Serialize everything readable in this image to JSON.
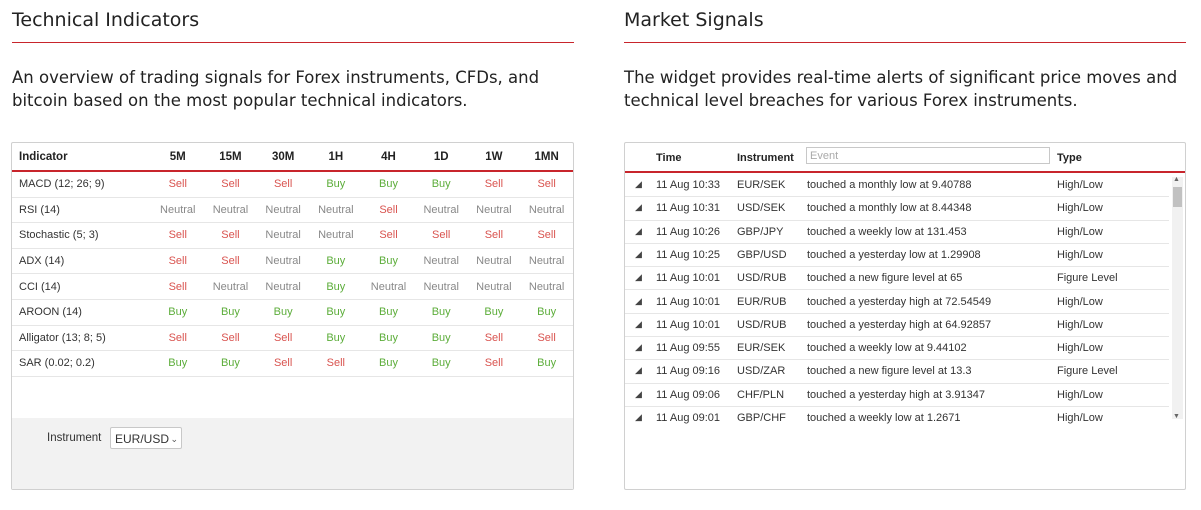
{
  "technical": {
    "title": "Technical Indicators",
    "description": "An overview of trading signals for Forex instruments, CFDs, and bitcoin based on the most popular technical indicators.",
    "columns": [
      "Indicator",
      "5M",
      "15M",
      "30M",
      "1H",
      "4H",
      "1D",
      "1W",
      "1MN"
    ],
    "rows": [
      {
        "name": "MACD (12; 26; 9)",
        "signals": [
          "Sell",
          "Sell",
          "Sell",
          "Buy",
          "Buy",
          "Buy",
          "Sell",
          "Sell"
        ]
      },
      {
        "name": "RSI (14)",
        "signals": [
          "Neutral",
          "Neutral",
          "Neutral",
          "Neutral",
          "Sell",
          "Neutral",
          "Neutral",
          "Neutral"
        ]
      },
      {
        "name": "Stochastic (5; 3)",
        "signals": [
          "Sell",
          "Sell",
          "Neutral",
          "Neutral",
          "Sell",
          "Sell",
          "Sell",
          "Sell"
        ]
      },
      {
        "name": "ADX (14)",
        "signals": [
          "Sell",
          "Sell",
          "Neutral",
          "Buy",
          "Buy",
          "Neutral",
          "Neutral",
          "Neutral"
        ]
      },
      {
        "name": "CCI (14)",
        "signals": [
          "Sell",
          "Neutral",
          "Neutral",
          "Buy",
          "Neutral",
          "Neutral",
          "Neutral",
          "Neutral"
        ]
      },
      {
        "name": "AROON (14)",
        "signals": [
          "Buy",
          "Buy",
          "Buy",
          "Buy",
          "Buy",
          "Buy",
          "Buy",
          "Buy"
        ]
      },
      {
        "name": "Alligator (13; 8; 5)",
        "signals": [
          "Sell",
          "Sell",
          "Sell",
          "Buy",
          "Buy",
          "Buy",
          "Sell",
          "Sell"
        ]
      },
      {
        "name": "SAR (0.02; 0.2)",
        "signals": [
          "Buy",
          "Buy",
          "Sell",
          "Sell",
          "Buy",
          "Buy",
          "Sell",
          "Buy"
        ]
      }
    ],
    "instrument_label": "Instrument",
    "instrument_value": "EUR/USD"
  },
  "market": {
    "title": "Market Signals",
    "description": "The widget provides real-time alerts of significant price moves and technical level breaches for various Forex instruments.",
    "headers": {
      "time": "Time",
      "instrument": "Instrument",
      "event_placeholder": "Event",
      "type": "Type"
    },
    "rows": [
      {
        "time": "11 Aug 10:33",
        "instrument": "EUR/SEK",
        "event": "touched a monthly low at 9.40788",
        "type": "High/Low"
      },
      {
        "time": "11 Aug 10:31",
        "instrument": "USD/SEK",
        "event": "touched a monthly low at 8.44348",
        "type": "High/Low"
      },
      {
        "time": "11 Aug 10:26",
        "instrument": "GBP/JPY",
        "event": "touched a weekly low at 131.453",
        "type": "High/Low"
      },
      {
        "time": "11 Aug 10:25",
        "instrument": "GBP/USD",
        "event": "touched a yesterday low at 1.29908",
        "type": "High/Low"
      },
      {
        "time": "11 Aug 10:01",
        "instrument": "USD/RUB",
        "event": "touched a new figure level at 65",
        "type": "Figure Level"
      },
      {
        "time": "11 Aug 10:01",
        "instrument": "EUR/RUB",
        "event": "touched a yesterday high at 72.54549",
        "type": "High/Low"
      },
      {
        "time": "11 Aug 10:01",
        "instrument": "USD/RUB",
        "event": "touched a yesterday high at 64.92857",
        "type": "High/Low"
      },
      {
        "time": "11 Aug 09:55",
        "instrument": "EUR/SEK",
        "event": "touched a weekly low at 9.44102",
        "type": "High/Low"
      },
      {
        "time": "11 Aug 09:16",
        "instrument": "USD/ZAR",
        "event": "touched a new figure level at 13.3",
        "type": "Figure Level"
      },
      {
        "time": "11 Aug 09:06",
        "instrument": "CHF/PLN",
        "event": "touched a yesterday high at 3.91347",
        "type": "High/Low"
      },
      {
        "time": "11 Aug 09:01",
        "instrument": "GBP/CHF",
        "event": "touched a weekly low at 1.2671",
        "type": "High/Low"
      }
    ]
  },
  "colors": {
    "accent": "#c8252c",
    "sell": "#d9534f",
    "buy": "#5cad3a",
    "neutral": "#888888"
  },
  "icons": {
    "row_icon": "signal-bars-icon"
  }
}
